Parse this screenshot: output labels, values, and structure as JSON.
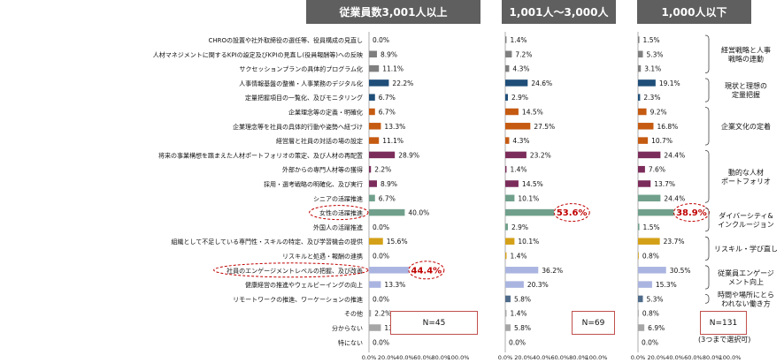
{
  "headers": [
    "従業員数3,001人以上",
    "1,001人～3,000人",
    "1,000人以下"
  ],
  "chart_data": {
    "type": "bar",
    "orientation": "horizontal",
    "categories": [
      "CHROの設置や社外取締役の選任等、役員構成の見直し",
      "人材マネジメントに関するKPIの設定及びKPIの見直し(役員報酬等)への反映",
      "サクセッションプランの具体的プログラム化",
      "人事情報基盤の整備・人事業務のデジタル化",
      "定量把握項目の一覧化、及びモニタリング",
      "企業理念等の定義・明確化",
      "企業理念等を社員の具体的行動や姿勢へ紐づけ",
      "経営層と社員の対話の場の設定",
      "将来の事業構想を踏まえた人材ポートフォリオの策定、及び人材の再配置",
      "外部からの専門人材等の獲得",
      "採用・選考戦略の明確化、及び実行",
      "シニアの活躍推進",
      "女性の活躍推進",
      "外国人の活躍推進",
      "組織として不足している専門性・スキルの特定、及び学習機会の提供",
      "リスキルと処遇・報酬の連携",
      "社員のエンゲージメントレベルの把握、及び改善",
      "健康経営の推進やウェルビーイングの向上",
      "リモートワークの推進、ワーケーションの推進",
      "その他",
      "分からない",
      "特にない"
    ],
    "series": [
      {
        "name": "従業員数3,001人以上",
        "values": [
          0.0,
          8.9,
          11.1,
          22.2,
          6.7,
          6.7,
          13.3,
          11.1,
          28.9,
          2.2,
          8.9,
          6.7,
          40.0,
          0.0,
          15.6,
          0.0,
          44.4,
          13.3,
          0.0,
          2.2,
          13.3,
          0.0
        ],
        "labels": [
          "0.0%",
          "8.9%",
          "11.1%",
          "22.2%",
          "6.7%",
          "6.7%",
          "13.3%",
          "11.1%",
          "28.9%",
          "2.2%",
          "8.9%",
          "6.7%",
          "40.0%",
          "0.0%",
          "15.6%",
          "0.0%",
          "44.4%",
          "13.3%",
          "0.0%",
          "2.2%",
          "13.3%",
          "0.0%"
        ]
      },
      {
        "name": "1,001人～3,000人",
        "values": [
          1.4,
          7.2,
          4.3,
          24.6,
          2.9,
          14.5,
          27.5,
          4.3,
          23.2,
          1.4,
          14.5,
          10.1,
          53.6,
          2.9,
          10.1,
          1.4,
          36.2,
          20.3,
          5.8,
          1.4,
          5.8,
          0.0
        ],
        "labels": [
          "1.4%",
          "7.2%",
          "4.3%",
          "24.6%",
          "2.9%",
          "14.5%",
          "27.5%",
          "4.3%",
          "23.2%",
          "1.4%",
          "14.5%",
          "10.1%",
          "53.6%",
          "2.9%",
          "10.1%",
          "1.4%",
          "36.2%",
          "20.3%",
          "5.8%",
          "1.4%",
          "5.8%",
          "0.0%"
        ]
      },
      {
        "name": "1,000人以下",
        "values": [
          1.5,
          5.3,
          3.1,
          19.1,
          2.3,
          9.2,
          16.8,
          10.7,
          24.4,
          7.6,
          13.7,
          24.4,
          38.9,
          1.5,
          23.7,
          0.8,
          30.5,
          15.3,
          5.3,
          0.8,
          6.9,
          0.0
        ],
        "labels": [
          "1.5%",
          "5.3%",
          "3.1%",
          "19.1%",
          "2.3%",
          "9.2%",
          "16.8%",
          "10.7%",
          "24.4%",
          "7.6%",
          "13.7%",
          "24.4%",
          "38.9%",
          "1.5%",
          "23.7%",
          "0.8%",
          "30.5%",
          "15.3%",
          "5.3%",
          "0.8%",
          "6.9%",
          "0.0%"
        ]
      }
    ],
    "bar_colors": [
      "#7f7f7f",
      "#7f7f7f",
      "#7f7f7f",
      "#1f4e79",
      "#1f4e79",
      "#c55a11",
      "#c55a11",
      "#c55a11",
      "#7b2c5a",
      "#7b2c5a",
      "#7b2c5a",
      "#70a08c",
      "#70a08c",
      "#70a08c",
      "#d4a017",
      "#d4a017",
      "#aab4e0",
      "#aab4e0",
      "#4f6b8a",
      "#a6a6a6",
      "#a6a6a6",
      "#a6a6a6"
    ],
    "xlim": [
      0,
      100
    ],
    "x_ticks": [
      "0.0%",
      "20.0%",
      "40.0%",
      "60.0%",
      "80.0%",
      "100.0%"
    ],
    "highlights": [
      {
        "panel": 0,
        "row": 12,
        "type": "category-circle"
      },
      {
        "panel": 0,
        "row": 16,
        "type": "category-circle"
      },
      {
        "panel": 0,
        "row": 16,
        "type": "value-circle"
      },
      {
        "panel": 1,
        "row": 12,
        "type": "value-circle"
      },
      {
        "panel": 2,
        "row": 12,
        "type": "value-circle"
      }
    ],
    "groups": [
      {
        "label": [
          "経営戦略と人事",
          "戦略の連動"
        ],
        "rows": [
          0,
          2
        ]
      },
      {
        "label": [
          "現状と理想の",
          "定量把握"
        ],
        "rows": [
          3,
          4
        ]
      },
      {
        "label": [
          "企業文化の定着"
        ],
        "rows": [
          5,
          7
        ]
      },
      {
        "label": [
          "動的な人材",
          "ポートフォリオ"
        ],
        "rows": [
          8,
          11
        ]
      },
      {
        "label": [
          "ダイバーシティ&",
          "インクルージョン"
        ],
        "rows": [
          12,
          13
        ]
      },
      {
        "label": [
          "リスキル・学び直し"
        ],
        "rows": [
          14,
          15
        ]
      },
      {
        "label": [
          "従業員エンゲージ",
          "メント向上"
        ],
        "rows": [
          16,
          17
        ]
      },
      {
        "label": [
          "時間や場所にとら",
          "われない働き方"
        ],
        "rows": [
          18,
          18
        ]
      }
    ]
  },
  "n_labels": [
    "N=45",
    "N=69",
    "N=131"
  ],
  "note": "(3つまで選択可)"
}
